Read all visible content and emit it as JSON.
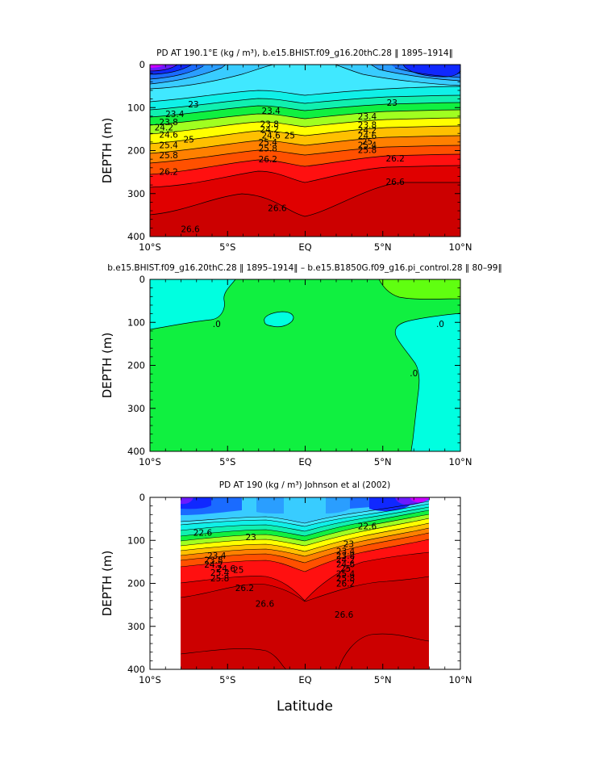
{
  "chart_data": [
    {
      "type": "contour",
      "title": "PD AT 190.1°E (kg / m³), b.e15.BHIST.f09_g16.20thC.28 ‖ 1895–1914‖",
      "xlabel": "",
      "ylabel": "DEPTH (m)",
      "xlim": [
        -10,
        10
      ],
      "ylim": [
        400,
        0
      ],
      "x_ticks": [
        "10°S",
        "5°S",
        "EQ",
        "5°N",
        "10°N"
      ],
      "y_ticks": [
        "0",
        "100",
        "200",
        "300",
        "400"
      ],
      "contour_labels": [
        {
          "text": "23",
          "lat": -7.2,
          "depth": 92
        },
        {
          "text": "23.4",
          "lat": -8.4,
          "depth": 115
        },
        {
          "text": "23.8",
          "lat": -8.8,
          "depth": 133
        },
        {
          "text": "24.2",
          "lat": -9.1,
          "depth": 146
        },
        {
          "text": "24.6",
          "lat": -8.8,
          "depth": 162
        },
        {
          "text": "25",
          "lat": -7.5,
          "depth": 174
        },
        {
          "text": "25.4",
          "lat": -8.8,
          "depth": 187
        },
        {
          "text": "25.8",
          "lat": -8.8,
          "depth": 210
        },
        {
          "text": "26.2",
          "lat": -8.8,
          "depth": 249
        },
        {
          "text": "26.6",
          "lat": -7.4,
          "depth": 382
        },
        {
          "text": "23.4",
          "lat": -2.2,
          "depth": 107
        },
        {
          "text": "23.8",
          "lat": -2.3,
          "depth": 138
        },
        {
          "text": "24.2",
          "lat": -2.3,
          "depth": 150
        },
        {
          "text": "24.6",
          "lat": -2.2,
          "depth": 164
        },
        {
          "text": "25",
          "lat": -1.0,
          "depth": 164
        },
        {
          "text": "25.4",
          "lat": -2.4,
          "depth": 180
        },
        {
          "text": "25.8",
          "lat": -2.4,
          "depth": 194
        },
        {
          "text": "26.2",
          "lat": -2.4,
          "depth": 220
        },
        {
          "text": "26.6",
          "lat": -1.8,
          "depth": 333
        },
        {
          "text": "23",
          "lat": 5.6,
          "depth": 88
        },
        {
          "text": "23.4",
          "lat": 4.0,
          "depth": 120
        },
        {
          "text": "23.8",
          "lat": 4.0,
          "depth": 140
        },
        {
          "text": "24.2",
          "lat": 4.0,
          "depth": 152
        },
        {
          "text": "24.6",
          "lat": 4.0,
          "depth": 165
        },
        {
          "text": "25",
          "lat": 4.0,
          "depth": 178
        },
        {
          "text": "25.4",
          "lat": 4.0,
          "depth": 187
        },
        {
          "text": "25.8",
          "lat": 4.0,
          "depth": 198
        },
        {
          "text": "26.2",
          "lat": 5.8,
          "depth": 218
        },
        {
          "text": "26.6",
          "lat": 5.8,
          "depth": 272
        }
      ]
    },
    {
      "type": "contour",
      "title": "b.e15.BHIST.f09_g16.20thC.28 ‖ 1895–1914‖ – b.e15.B1850G.f09_g16.pi_control.28 ‖ 80–99‖",
      "xlabel": "",
      "ylabel": "DEPTH (m)",
      "xlim": [
        -10,
        10
      ],
      "ylim": [
        400,
        0
      ],
      "x_ticks": [
        "10°S",
        "5°S",
        "EQ",
        "5°N",
        "10°N"
      ],
      "y_ticks": [
        "0",
        "100",
        "200",
        "300",
        "400"
      ],
      "contour_labels": [
        {
          "text": ".0",
          "lat": -5.7,
          "depth": 103
        },
        {
          "text": ".0",
          "lat": 8.7,
          "depth": 103
        },
        {
          "text": ".0",
          "lat": 7.0,
          "depth": 218
        }
      ]
    },
    {
      "type": "contour",
      "title": "PD AT 190 (kg / m³) Johnson et al (2002)",
      "xlabel": "Latitude",
      "ylabel": "DEPTH (m)",
      "xlim": [
        -10,
        10
      ],
      "ylim": [
        400,
        0
      ],
      "data_lat_range": [
        -8,
        8
      ],
      "x_ticks": [
        "10°S",
        "5°S",
        "EQ",
        "5°N",
        "10°N"
      ],
      "y_ticks": [
        "0",
        "100",
        "200",
        "300",
        "400"
      ],
      "contour_labels": [
        {
          "text": "22.6",
          "lat": -6.6,
          "depth": 82
        },
        {
          "text": "23",
          "lat": -3.5,
          "depth": 92
        },
        {
          "text": "23.4",
          "lat": -5.7,
          "depth": 135
        },
        {
          "text": "23.8",
          "lat": -5.9,
          "depth": 146
        },
        {
          "text": "24.2",
          "lat": -5.9,
          "depth": 156
        },
        {
          "text": "24.6",
          "lat": -5.1,
          "depth": 165
        },
        {
          "text": "25",
          "lat": -4.3,
          "depth": 168
        },
        {
          "text": "25.4",
          "lat": -5.5,
          "depth": 175
        },
        {
          "text": "25.8",
          "lat": -5.5,
          "depth": 188
        },
        {
          "text": "26.2",
          "lat": -3.9,
          "depth": 210
        },
        {
          "text": "26.6",
          "lat": -2.6,
          "depth": 247
        },
        {
          "text": "22.6",
          "lat": 4.0,
          "depth": 67
        },
        {
          "text": "23",
          "lat": 2.8,
          "depth": 108
        },
        {
          "text": "23.4",
          "lat": 2.6,
          "depth": 125
        },
        {
          "text": "23.8",
          "lat": 2.6,
          "depth": 135
        },
        {
          "text": "24.2",
          "lat": 2.6,
          "depth": 145
        },
        {
          "text": "24.6",
          "lat": 2.6,
          "depth": 155
        },
        {
          "text": "25",
          "lat": 2.6,
          "depth": 165
        },
        {
          "text": "25.4",
          "lat": 2.6,
          "depth": 177
        },
        {
          "text": "25.8",
          "lat": 2.6,
          "depth": 188
        },
        {
          "text": "26.2",
          "lat": 2.6,
          "depth": 200
        },
        {
          "text": "26.6",
          "lat": 2.5,
          "depth": 272
        }
      ]
    }
  ],
  "figure": {
    "xlabel": "Latitude"
  },
  "colors": {
    "sponge_magenta": "#CC00FF",
    "violet": "#6A1AFF",
    "blue_deep": "#1028FF",
    "blue": "#1A6BFF",
    "sky": "#2A9EFF",
    "cyan": "#38CCFF",
    "cyan_light": "#40E8FF",
    "aqua": "#10F0E8",
    "teal_green": "#10F0B0",
    "green": "#20E860",
    "green_bright": "#10F040",
    "lime": "#A0FF20",
    "yellow": "#FFFF00",
    "amber": "#FFC000",
    "orange": "#FF8000",
    "orange_red": "#FF5000",
    "red": "#FF1010",
    "red_dark": "#E00000",
    "crimson": "#CC0000",
    "diff_cyan": "#00FFE0",
    "diff_green": "#10F040",
    "diff_lime": "#60FF10"
  }
}
